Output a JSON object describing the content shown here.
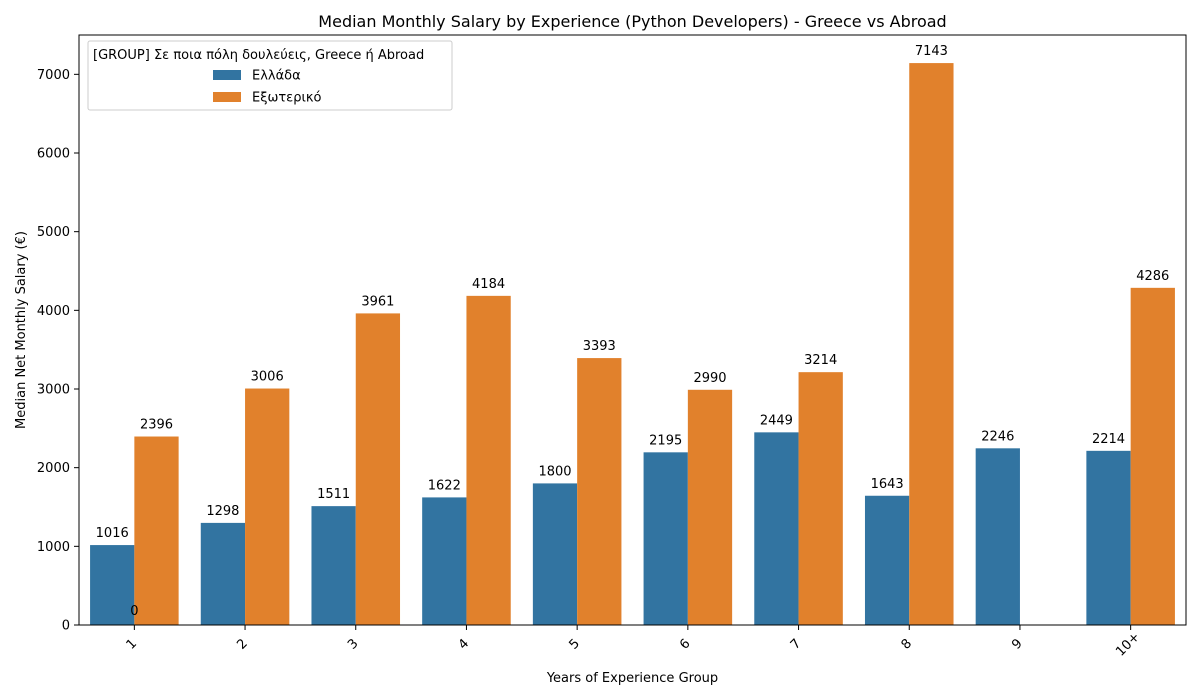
{
  "chart_data": {
    "type": "bar",
    "title": "Median Monthly Salary by Experience (Python Developers) - Greece vs Abroad",
    "xlabel": "Years of Experience Group",
    "ylabel": "Median Net Monthly Salary (€)",
    "categories": [
      "1",
      "2",
      "3",
      "4",
      "5",
      "6",
      "7",
      "8",
      "9",
      "10+"
    ],
    "ylim": [
      0,
      7500
    ],
    "yticks": [
      0,
      1000,
      2000,
      3000,
      4000,
      5000,
      6000,
      7000
    ],
    "legend": {
      "title": "[GROUP] Σε ποια πόλη δουλεύεις, Greece ή Abroad",
      "placement": "top-left"
    },
    "series": [
      {
        "name": "Ελλάδα",
        "color": "#3274a1",
        "values": [
          1016,
          1298,
          1511,
          1622,
          1800,
          2195,
          2449,
          1643,
          2246,
          2214
        ]
      },
      {
        "name": "Εξωτερικό",
        "color": "#e1812c",
        "values": [
          2396,
          3006,
          3961,
          4184,
          3393,
          2990,
          3214,
          7143,
          null,
          4286
        ]
      }
    ],
    "annotations": [
      {
        "text": "0",
        "category": "1",
        "value": 0
      }
    ]
  }
}
